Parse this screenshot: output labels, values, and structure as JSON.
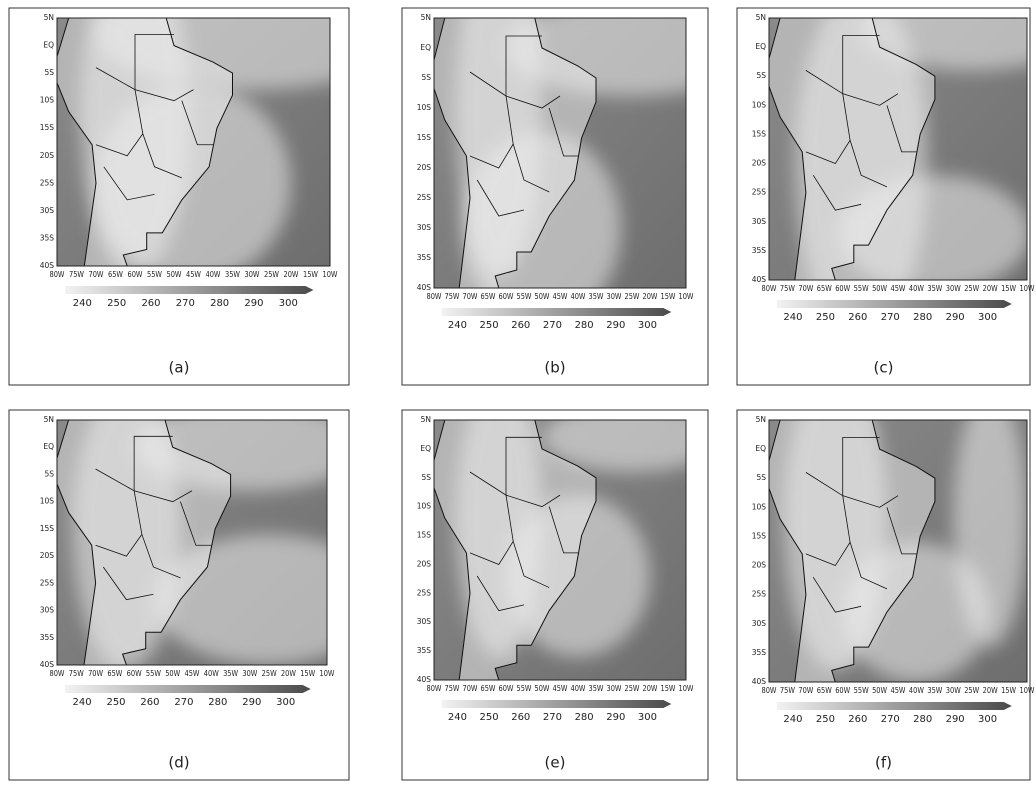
{
  "panels": [
    {
      "label": "(a)"
    },
    {
      "label": "(b)"
    },
    {
      "label": "(c)"
    },
    {
      "label": "(d)"
    },
    {
      "label": "(e)"
    },
    {
      "label": "(f)"
    }
  ],
  "lat_labels": [
    "5N",
    "EQ",
    "5S",
    "10S",
    "15S",
    "20S",
    "25S",
    "30S",
    "35S",
    "40S"
  ],
  "lon_labels": [
    "80W",
    "75W",
    "70W",
    "65W",
    "60W",
    "55W",
    "50W",
    "45W",
    "40W",
    "35W",
    "30W",
    "25W",
    "20W",
    "15W",
    "10W"
  ],
  "colorbar_ticks": [
    240,
    250,
    260,
    270,
    280,
    290,
    300
  ]
}
